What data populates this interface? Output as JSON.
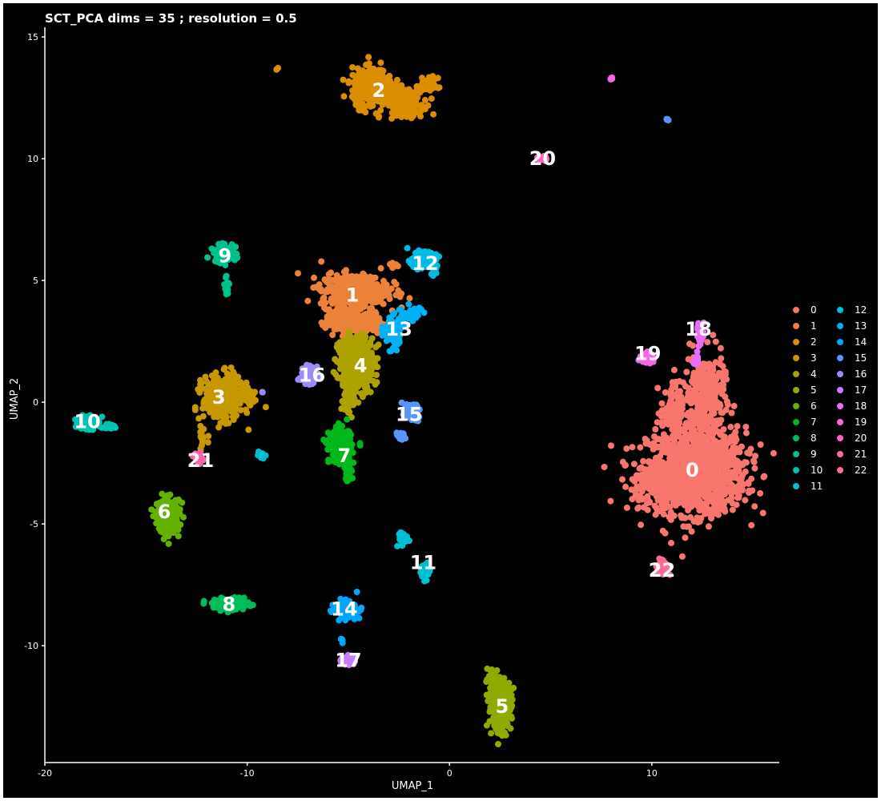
{
  "chart_data": {
    "type": "scatter",
    "title": "SCT_PCA dims =  35 ; resolution = 0.5",
    "xlabel": "UMAP_1",
    "ylabel": "UMAP_2",
    "xlim": [
      -20,
      16.3
    ],
    "ylim": [
      -14.8,
      15.4
    ],
    "xticks": [
      -20,
      -10,
      0,
      10
    ],
    "yticks": [
      15,
      10,
      5,
      0,
      -5,
      -10
    ],
    "grid": false,
    "legend_position": "right",
    "legend_columns": 2,
    "clusters": [
      {
        "id": "0",
        "color": "#F8766D",
        "label_x": 12.0,
        "label_y": -2.8,
        "blobs": [
          [
            12.2,
            -2.8,
            2.2,
            1.6,
            1200
          ],
          [
            12.6,
            0.2,
            0.9,
            1.6,
            300
          ],
          [
            11.0,
            -0.3,
            0.5,
            1.0,
            80
          ],
          [
            10.7,
            -3.4,
            1.5,
            0.8,
            200
          ]
        ]
      },
      {
        "id": "1",
        "color": "#EC8239",
        "label_x": -4.8,
        "label_y": 4.4,
        "blobs": [
          [
            -4.7,
            4.6,
            1.5,
            0.6,
            420
          ],
          [
            -4.7,
            3.3,
            1.3,
            0.5,
            280
          ],
          [
            -2.7,
            5.6,
            0.4,
            0.1,
            8
          ]
        ]
      },
      {
        "id": "2",
        "color": "#DB8E00",
        "label_x": -3.5,
        "label_y": 12.8,
        "blobs": [
          [
            -3.8,
            12.9,
            0.9,
            0.7,
            380
          ],
          [
            -2.2,
            12.3,
            0.8,
            0.5,
            200
          ],
          [
            -1.0,
            13.0,
            0.4,
            0.3,
            40
          ],
          [
            -8.5,
            13.7,
            0.05,
            0.05,
            3
          ]
        ]
      },
      {
        "id": "3",
        "color": "#C79800",
        "label_x": -11.4,
        "label_y": 0.2,
        "blobs": [
          [
            -11.2,
            0.2,
            0.9,
            0.8,
            420
          ],
          [
            -9.9,
            0.2,
            0.3,
            0.3,
            25
          ],
          [
            -12.2,
            -1.5,
            0.2,
            0.4,
            14
          ]
        ]
      },
      {
        "id": "4",
        "color": "#AEA200",
        "label_x": -4.4,
        "label_y": 1.5,
        "blobs": [
          [
            -4.6,
            1.6,
            0.8,
            1.0,
            420
          ],
          [
            -5.0,
            0.1,
            0.3,
            0.6,
            40
          ]
        ]
      },
      {
        "id": "5",
        "color": "#8FAA00",
        "label_x": 2.6,
        "label_y": -12.5,
        "blobs": [
          [
            2.5,
            -12.4,
            0.5,
            0.9,
            340
          ],
          [
            2.1,
            -11.3,
            0.2,
            0.3,
            30
          ]
        ]
      },
      {
        "id": "6",
        "color": "#64B200",
        "label_x": -14.1,
        "label_y": -4.5,
        "blobs": [
          [
            -13.9,
            -4.7,
            0.5,
            0.6,
            300
          ]
        ]
      },
      {
        "id": "7",
        "color": "#00B81B",
        "label_x": -5.2,
        "label_y": -2.2,
        "blobs": [
          [
            -5.4,
            -1.8,
            0.5,
            0.6,
            260
          ],
          [
            -5.0,
            -2.8,
            0.2,
            0.4,
            50
          ]
        ]
      },
      {
        "id": "8",
        "color": "#00BD5C",
        "label_x": -10.9,
        "label_y": -8.3,
        "blobs": [
          [
            -10.8,
            -8.3,
            0.8,
            0.2,
            220
          ]
        ]
      },
      {
        "id": "9",
        "color": "#00C08D",
        "label_x": -11.1,
        "label_y": 6.0,
        "blobs": [
          [
            -11.1,
            6.1,
            0.5,
            0.3,
            140
          ],
          [
            -11.0,
            4.8,
            0.1,
            0.4,
            18
          ]
        ]
      },
      {
        "id": "10",
        "color": "#00C1B2",
        "label_x": -17.9,
        "label_y": -0.8,
        "blobs": [
          [
            -17.9,
            -0.8,
            0.4,
            0.3,
            140
          ],
          [
            -16.8,
            -1.0,
            0.4,
            0.08,
            30
          ]
        ]
      },
      {
        "id": "11",
        "color": "#00BFD0",
        "label_x": -1.3,
        "label_y": -6.6,
        "blobs": [
          [
            -1.2,
            -6.9,
            0.2,
            0.3,
            50
          ],
          [
            -2.2,
            -5.6,
            0.3,
            0.4,
            25
          ],
          [
            -9.3,
            -2.2,
            0.15,
            0.1,
            14
          ]
        ]
      },
      {
        "id": "12",
        "color": "#00BAE6",
        "label_x": -1.2,
        "label_y": 5.7,
        "blobs": [
          [
            -1.3,
            5.8,
            0.6,
            0.3,
            90
          ],
          [
            -0.8,
            5.3,
            0.15,
            0.15,
            8
          ]
        ]
      },
      {
        "id": "13",
        "color": "#00B1F5",
        "label_x": -2.5,
        "label_y": 3.0,
        "blobs": [
          [
            -2.8,
            2.9,
            0.4,
            0.6,
            110
          ],
          [
            -1.9,
            3.6,
            0.5,
            0.3,
            40
          ]
        ]
      },
      {
        "id": "14",
        "color": "#00A5FF",
        "label_x": -5.2,
        "label_y": -8.5,
        "blobs": [
          [
            -5.1,
            -8.5,
            0.5,
            0.3,
            150
          ],
          [
            -5.3,
            -9.8,
            0.05,
            0.1,
            4
          ]
        ]
      },
      {
        "id": "15",
        "color": "#5697FF",
        "label_x": -2.0,
        "label_y": -0.5,
        "blobs": [
          [
            -1.9,
            -0.4,
            0.4,
            0.3,
            70
          ],
          [
            -2.4,
            -1.4,
            0.2,
            0.2,
            15
          ],
          [
            10.8,
            11.6,
            0.05,
            0.05,
            4
          ]
        ]
      },
      {
        "id": "16",
        "color": "#9D8AFF",
        "label_x": -6.8,
        "label_y": 1.1,
        "blobs": [
          [
            -7.0,
            1.1,
            0.4,
            0.3,
            80
          ],
          [
            -9.3,
            0.4,
            0.05,
            0.05,
            2
          ]
        ]
      },
      {
        "id": "17",
        "color": "#CA7BFF",
        "label_x": -5.0,
        "label_y": -10.6,
        "blobs": [
          [
            -5.0,
            -10.6,
            0.3,
            0.2,
            60
          ]
        ]
      },
      {
        "id": "18",
        "color": "#E86EF9",
        "label_x": 12.3,
        "label_y": 3.0,
        "blobs": [
          [
            12.4,
            2.8,
            0.15,
            0.35,
            45
          ],
          [
            12.2,
            1.8,
            0.1,
            0.3,
            15
          ]
        ]
      },
      {
        "id": "19",
        "color": "#F766E5",
        "label_x": 9.8,
        "label_y": 2.0,
        "blobs": [
          [
            9.8,
            1.8,
            0.3,
            0.2,
            45
          ],
          [
            8.0,
            13.3,
            0.05,
            0.05,
            6
          ]
        ]
      },
      {
        "id": "20",
        "color": "#FF62C9",
        "label_x": 4.6,
        "label_y": 10.0,
        "blobs": [
          [
            4.6,
            10.0,
            0.2,
            0.1,
            20
          ]
        ]
      },
      {
        "id": "21",
        "color": "#FF66A8",
        "label_x": -12.3,
        "label_y": -2.4,
        "blobs": [
          [
            -12.4,
            -2.3,
            0.2,
            0.2,
            25
          ]
        ]
      },
      {
        "id": "22",
        "color": "#FF6C92",
        "label_x": 10.5,
        "label_y": -6.9,
        "blobs": [
          [
            10.5,
            -6.8,
            0.3,
            0.3,
            40
          ]
        ]
      }
    ]
  }
}
